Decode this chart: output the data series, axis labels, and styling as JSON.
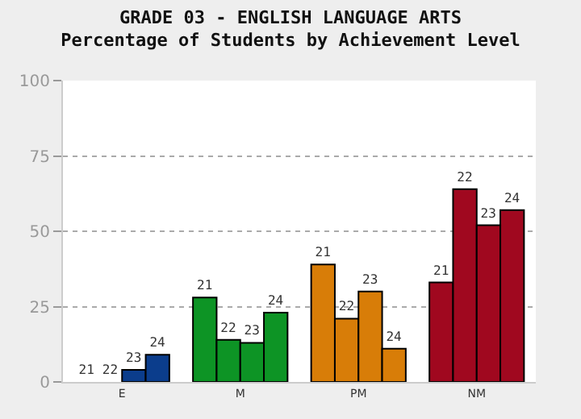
{
  "chart_data": {
    "type": "bar",
    "title": "GRADE 03 - ENGLISH LANGUAGE ARTS\nPercentage of Students by Achievement Level",
    "categories": [
      "E",
      "M",
      "PM",
      "NM"
    ],
    "series": [
      {
        "name": "21",
        "colors": [
          "#0b3d8c",
          "#0d9425",
          "#d87d08",
          "#a0081f"
        ],
        "values": [
          0,
          28,
          39,
          33
        ]
      },
      {
        "name": "22",
        "colors": [
          "#0b3d8c",
          "#0d9425",
          "#d87d08",
          "#a0081f"
        ],
        "values": [
          0,
          14,
          21,
          64
        ]
      },
      {
        "name": "23",
        "colors": [
          "#0b3d8c",
          "#0d9425",
          "#d87d08",
          "#a0081f"
        ],
        "values": [
          4,
          13,
          30,
          52
        ]
      },
      {
        "name": "24",
        "colors": [
          "#0b3d8c",
          "#0d9425",
          "#d87d08",
          "#a0081f"
        ],
        "values": [
          9,
          23,
          11,
          57
        ]
      }
    ],
    "ylim": [
      0,
      100
    ],
    "yticks": [
      0,
      25,
      50,
      75,
      100
    ],
    "grid": "y",
    "legend": false
  }
}
